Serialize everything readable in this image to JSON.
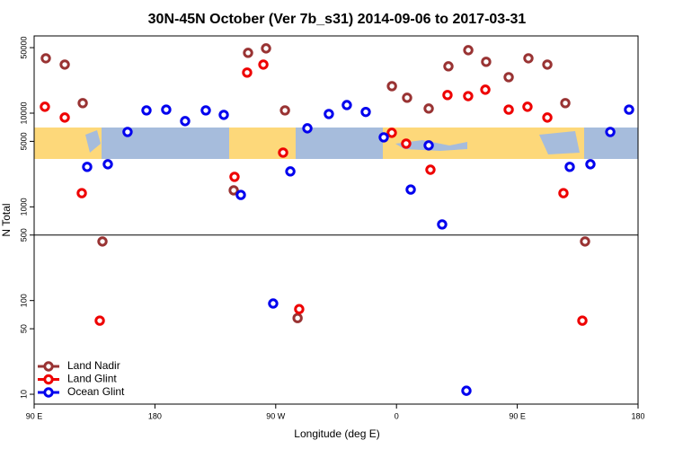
{
  "chart_data": {
    "type": "scatter",
    "title": "30N-45N October (Ver 7b_s31)   2014-09-06 to 2017-03-31",
    "x_label": "Longitude (deg E)",
    "y_label": "N Total",
    "xlim": [
      90,
      540
    ],
    "xticks": [
      {
        "value": 90,
        "label": "90 E"
      },
      180,
      {
        "value": 270,
        "label": "90 W"
      },
      {
        "value": 360,
        "label": "0"
      },
      {
        "value": 450,
        "label": "90 E"
      },
      {
        "value": 540,
        "label": "180"
      }
    ],
    "ylim": [
      7.85,
      66700
    ],
    "log_y": true,
    "yticks": [
      10,
      50,
      100,
      500,
      1000,
      5000,
      10000,
      50000
    ],
    "hlines": [
      500
    ],
    "legend": "lower left",
    "series": [
      {
        "name": "Land Nadir",
        "color": "#993333",
        "x": [
          98.7,
          112.8,
          126.2,
          140.9,
          249.4,
          262.8,
          276.9,
          286.3,
          356.6,
          367.9,
          384,
          398.7,
          413.5,
          426.8,
          443.6,
          458.3,
          472.4,
          485.8,
          500.5,
          238.7
        ],
        "values": [
          38500,
          33000,
          12800,
          427,
          44000,
          49100,
          10700,
          65,
          19400,
          14600,
          11200,
          31600,
          47000,
          35300,
          24200,
          38500,
          33000,
          12800,
          427,
          1500
        ]
      },
      {
        "name": "Land Glint",
        "color": "#ee0000",
        "x": [
          98,
          112.8,
          125.5,
          138.9,
          248.7,
          260.8,
          275.5,
          239.3,
          287.5,
          356.5,
          367.2,
          385.3,
          398,
          413.4,
          426.2,
          443.6,
          457.6,
          472.4,
          484.4,
          498.5
        ],
        "values": [
          11700,
          8980,
          1400,
          61,
          27100,
          33000,
          3790,
          2090,
          81,
          6170,
          4730,
          2490,
          15600,
          15200,
          17800,
          10900,
          11700,
          8980,
          1400,
          61
        ]
      },
      {
        "name": "Ocean Glint",
        "color": "#0000ee",
        "x": [
          129.5,
          144.9,
          159.6,
          173.7,
          188.4,
          202.5,
          217.9,
          231.3,
          244,
          268.1,
          280.9,
          293.6,
          309.6,
          323,
          337.1,
          350.5,
          370.6,
          384,
          394,
          412.1,
          489.1,
          504.5,
          519.3,
          533.3
        ],
        "values": [
          2670,
          2850,
          6300,
          10700,
          10900,
          8220,
          10700,
          9590,
          1340,
          93,
          2390,
          6890,
          9800,
          12200,
          10300,
          5520,
          1530,
          4530,
          649,
          10.9,
          2670,
          2850,
          6300,
          10900
        ]
      }
    ]
  }
}
